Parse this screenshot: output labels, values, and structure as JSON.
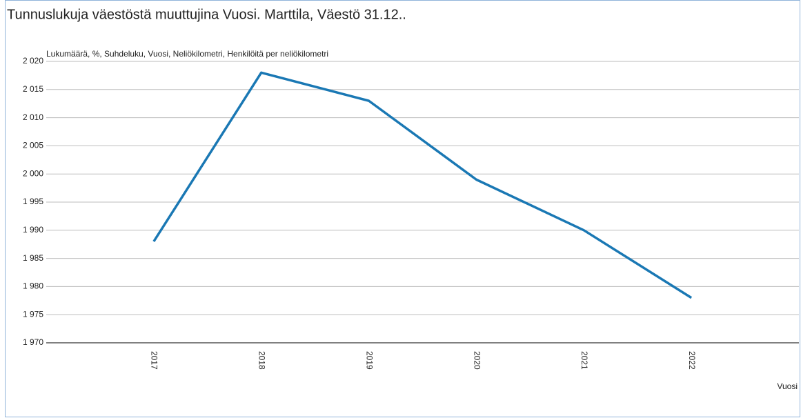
{
  "chart_data": {
    "type": "line",
    "title": "Tunnuslukuja väestöstä muuttujina Vuosi. Marttila, Väestö 31.12..",
    "y_label": "Lukumäärä, %, Suhdeluku, Vuosi, Neliökilometri, Henkilöitä per neliökilometri",
    "x_label": "Vuosi",
    "categories": [
      "2017",
      "2018",
      "2019",
      "2020",
      "2021",
      "2022"
    ],
    "series": [
      {
        "name": "Väestö 31.12.",
        "color": "#1a78b4",
        "values": [
          1988,
          2018,
          2013,
          1999,
          1990,
          1978
        ]
      }
    ],
    "ylim": [
      1970,
      2020
    ],
    "yticks": [
      {
        "value": 1970,
        "label": "1 970"
      },
      {
        "value": 1975,
        "label": "1 975"
      },
      {
        "value": 1980,
        "label": "1 980"
      },
      {
        "value": 1985,
        "label": "1 985"
      },
      {
        "value": 1990,
        "label": "1 990"
      },
      {
        "value": 1995,
        "label": "1 995"
      },
      {
        "value": 2000,
        "label": "2 000"
      },
      {
        "value": 2005,
        "label": "2 005"
      },
      {
        "value": 2010,
        "label": "2 010"
      },
      {
        "value": 2015,
        "label": "2 015"
      },
      {
        "value": 2020,
        "label": "2 020"
      }
    ],
    "grid": true
  }
}
